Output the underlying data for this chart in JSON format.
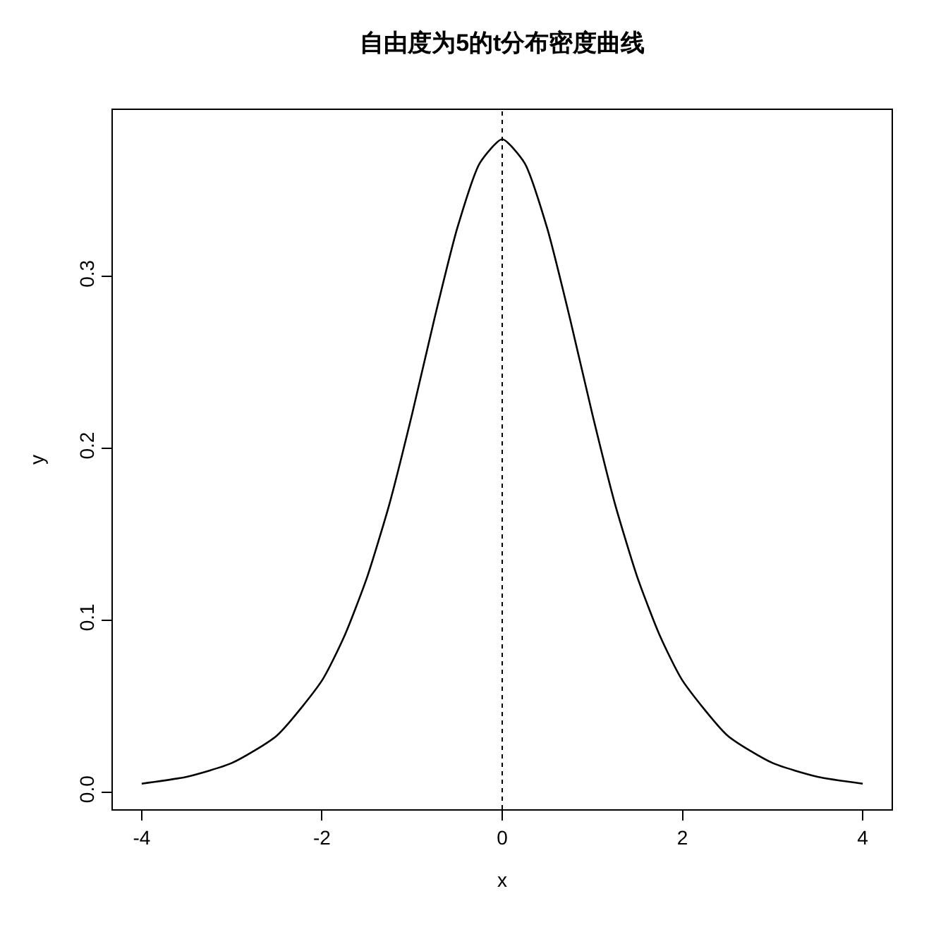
{
  "chart_data": {
    "type": "line",
    "title": "自由度为5的t分布密度曲线",
    "xlabel": "x",
    "ylabel": "y",
    "x": [
      -4,
      -3.5,
      -3,
      -2.5,
      -2,
      -1.75,
      -1.5,
      -1.25,
      -1,
      -0.75,
      -0.5,
      -0.25,
      0,
      0.25,
      0.5,
      0.75,
      1,
      1.25,
      1.5,
      1.75,
      2,
      2.5,
      3,
      3.5,
      4
    ],
    "series": [
      {
        "color": "#000000",
        "values": [
          0.005,
          0.009,
          0.017,
          0.033,
          0.065,
          0.091,
          0.125,
          0.168,
          0.22,
          0.276,
          0.328,
          0.366,
          0.38,
          0.366,
          0.328,
          0.276,
          0.22,
          0.168,
          0.125,
          0.091,
          0.065,
          0.033,
          0.017,
          0.009,
          0.005
        ]
      }
    ],
    "xlim": [
      -4.32,
      4.32
    ],
    "ylim": [
      -0.0099,
      0.397
    ],
    "xticks": [
      -4,
      -2,
      0,
      2,
      4
    ],
    "yticks": [
      {
        "value": 0,
        "label": "0.0"
      },
      {
        "value": 0.1,
        "label": "0.1"
      },
      {
        "value": 0.2,
        "label": "0.2"
      },
      {
        "value": 0.3,
        "label": "0.3"
      }
    ],
    "ref_lines": [
      {
        "axis": "x",
        "value": 0,
        "color": "#000000",
        "line_style": "dotted"
      }
    ],
    "marker": "none",
    "line_style": "solid"
  }
}
